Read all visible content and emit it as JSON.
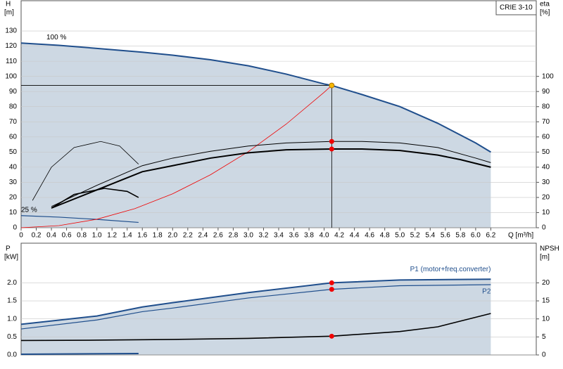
{
  "chart_data": [
    {
      "type": "line",
      "title": "CRIE 3-10",
      "ylabel": "H",
      "yunit": "[m]",
      "y2label": "eta",
      "y2unit": "[%]",
      "xlabel": "Q [m³/h]",
      "annotations": [
        "100 %",
        "25 %"
      ],
      "xlim": [
        0,
        6.8
      ],
      "xticks": [
        0,
        0.2,
        0.4,
        0.6,
        0.8,
        {
          "value": 1,
          "label": "1.0"
        },
        1.2,
        1.4,
        1.6,
        1.8,
        {
          "value": 2,
          "label": "2.0"
        },
        2.2,
        2.4,
        2.6,
        2.8,
        {
          "value": 3,
          "label": "3.0"
        },
        3.2,
        3.4,
        3.6,
        3.8,
        {
          "value": 4,
          "label": "4.0"
        },
        4.2,
        4.4,
        4.6,
        4.8,
        {
          "value": 5,
          "label": "5.0"
        },
        5.2,
        5.4,
        5.6,
        5.8,
        {
          "value": 6,
          "label": "6.0"
        },
        6.2
      ],
      "ylim": [
        0,
        150
      ],
      "yticks": [
        0,
        10,
        20,
        30,
        40,
        50,
        60,
        70,
        80,
        90,
        100,
        110,
        120,
        130
      ],
      "y2lim": [
        0,
        150
      ],
      "y2ticks": [
        0,
        10,
        20,
        30,
        40,
        50,
        60,
        70,
        80,
        90,
        100
      ],
      "grid": true,
      "area_color": "#cdd8e3",
      "series": [
        {
          "color": "#1f4e8c",
          "width": 2,
          "x": [
            0,
            0.5,
            1,
            1.6,
            2,
            2.5,
            3,
            3.5,
            4,
            4.1,
            4.5,
            5,
            5.5,
            6,
            6.2
          ],
          "values": [
            122,
            120.5,
            118.5,
            116,
            114,
            111,
            107,
            101.5,
            95,
            94,
            88,
            80,
            69,
            56,
            50
          ]
        },
        {
          "color": "#1f4e8c",
          "width": 1.2,
          "x": [
            0,
            0.5,
            1,
            1.55
          ],
          "values": [
            8,
            7,
            5.5,
            3.5
          ]
        },
        {
          "color": "#f00000",
          "width": 0.8,
          "x": [
            0,
            0.5,
            1,
            1.5,
            2,
            2.5,
            3,
            3.5,
            4,
            4.1
          ],
          "values": [
            0,
            1.4,
            5.6,
            12.6,
            22.4,
            35,
            50.3,
            68.5,
            89.5,
            94
          ]
        },
        {
          "color": "#000000",
          "width": 1,
          "axis": "y2",
          "x": [
            0.4,
            1,
            1.6,
            2,
            2.5,
            3,
            3.5,
            4.1,
            4.5,
            5,
            5.5,
            6,
            6.2
          ],
          "values": [
            14,
            28,
            41,
            46,
            50.5,
            54,
            56,
            57,
            57,
            56,
            53,
            46,
            43
          ]
        },
        {
          "color": "#000000",
          "width": 2,
          "axis": "y2",
          "x": [
            0.4,
            1,
            1.6,
            2,
            2.5,
            3,
            3.5,
            4.1,
            4.5,
            5,
            5.5,
            5.8,
            6.2
          ],
          "values": [
            13,
            25,
            37,
            41,
            46,
            49.5,
            51.5,
            52,
            52,
            51,
            48,
            45,
            40
          ]
        },
        {
          "color": "#000000",
          "width": 0.8,
          "axis": "y2",
          "x": [
            0.15,
            0.4,
            0.7,
            1.05,
            1.3,
            1.55
          ],
          "values": [
            18,
            40,
            53,
            57,
            54,
            42
          ]
        },
        {
          "color": "#000000",
          "width": 1.6,
          "axis": "y2",
          "x": [
            0.4,
            0.7,
            1.1,
            1.4,
            1.55
          ],
          "values": [
            13,
            22,
            26,
            24,
            20
          ]
        }
      ],
      "points": [
        {
          "x": 4.1,
          "y": 94,
          "color": "#f5b800"
        },
        {
          "x": 4.1,
          "y": 57,
          "axis": "y2",
          "color": "#f00000"
        },
        {
          "x": 4.1,
          "y": 52,
          "axis": "y2",
          "color": "#f00000"
        }
      ]
    },
    {
      "type": "line",
      "ylabel": "P",
      "yunit": "[kW]",
      "y2label": "NPSH",
      "y2unit": "[m]",
      "xlim": [
        0,
        6.8
      ],
      "ylim": [
        0,
        3.1
      ],
      "yticks": [
        {
          "value": 0,
          "label": "0.0"
        },
        0.5,
        {
          "value": 1,
          "label": "1.0"
        },
        1.5,
        {
          "value": 2,
          "label": "2.0"
        }
      ],
      "y2lim": [
        0,
        31
      ],
      "y2ticks": [
        0,
        5,
        10,
        15,
        20
      ],
      "grid": true,
      "area_color": "#cdd8e3",
      "series": [
        {
          "name": "P1 (motor+freq.converter)",
          "color": "#1f4e8c",
          "width": 2,
          "x": [
            0,
            1,
            1.6,
            2,
            3,
            4.1,
            5,
            6.2
          ],
          "values": [
            0.85,
            1.08,
            1.33,
            1.45,
            1.73,
            2.0,
            2.08,
            2.1
          ]
        },
        {
          "name": "P2",
          "color": "#1f4e8c",
          "width": 1.2,
          "x": [
            0,
            1,
            1.6,
            2,
            3,
            4.1,
            5,
            6.2
          ],
          "values": [
            0.72,
            0.97,
            1.2,
            1.3,
            1.58,
            1.82,
            1.92,
            1.95
          ]
        },
        {
          "color": "#000000",
          "width": 1.6,
          "axis": "y2",
          "x": [
            0,
            1,
            2,
            3,
            4.1,
            5,
            5.5,
            6.2
          ],
          "values": [
            4,
            4.1,
            4.3,
            4.6,
            5.2,
            6.5,
            7.8,
            11.5
          ]
        },
        {
          "color": "#1f4e8c",
          "width": 2,
          "x": [
            0,
            1.55
          ],
          "values": [
            0.02,
            0.04
          ]
        }
      ],
      "points": [
        {
          "x": 4.1,
          "y": 2.0,
          "color": "#f00000"
        },
        {
          "x": 4.1,
          "y": 1.82,
          "color": "#f00000"
        },
        {
          "x": 4.1,
          "y": 5.2,
          "axis": "y2",
          "color": "#f00000"
        }
      ]
    }
  ]
}
